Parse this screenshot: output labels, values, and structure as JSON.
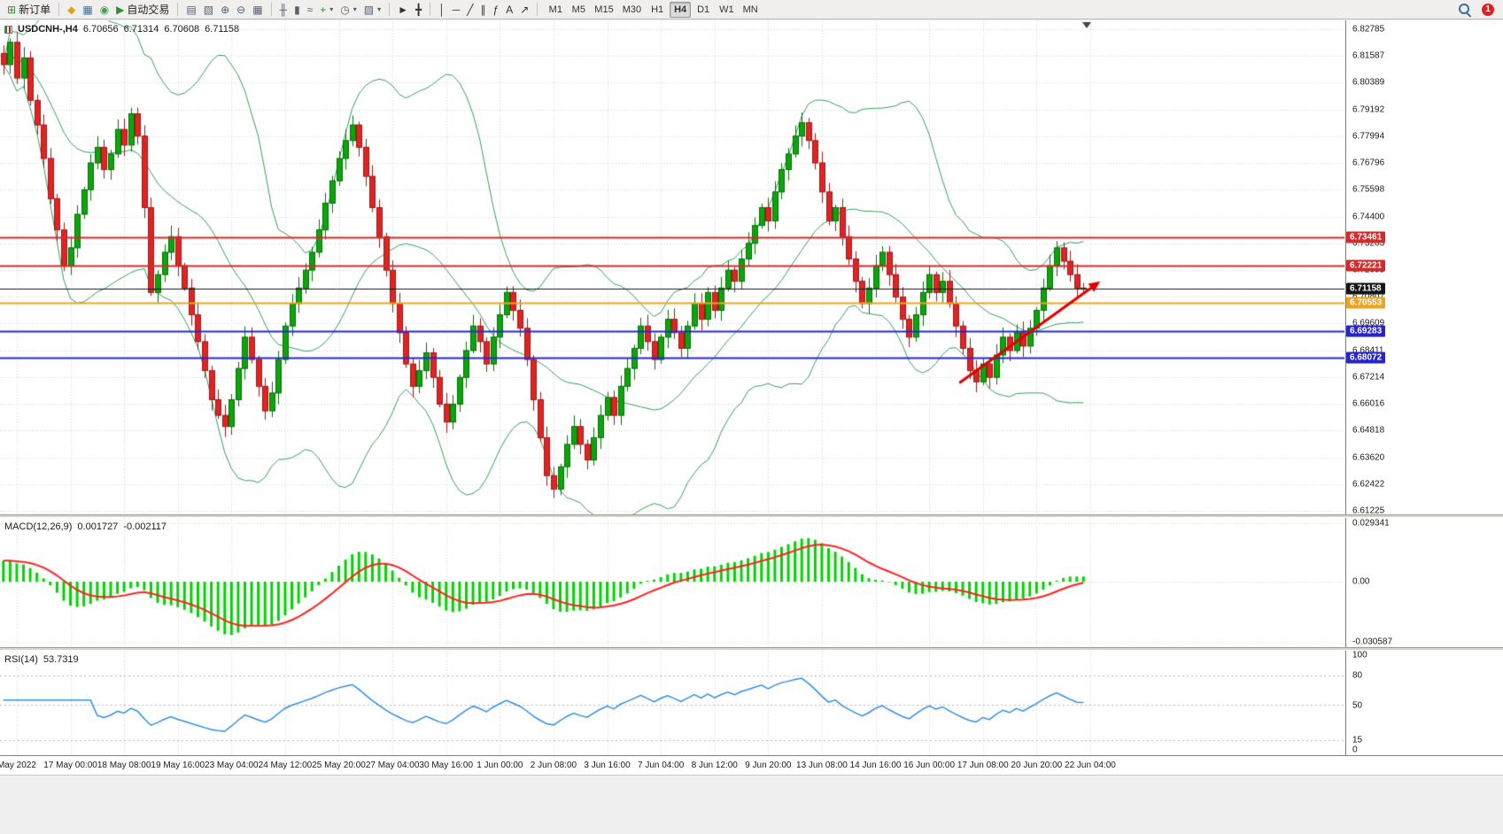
{
  "toolbar": {
    "groups": [
      {
        "name": "trade",
        "items": [
          {
            "name": "new-order-button",
            "icon": "new-order",
            "glyph": "⊞",
            "color": "#2f8f2f",
            "label": "新订单"
          }
        ]
      },
      {
        "name": "services",
        "items": [
          {
            "name": "mql5-community-button",
            "icon": "mql5",
            "glyph": "◆",
            "color": "#dfa31f"
          },
          {
            "name": "market-watch-button",
            "icon": "market-watch",
            "glyph": "▦",
            "color": "#3a6ea5"
          },
          {
            "name": "virtual-hosting-button",
            "icon": "hosting",
            "glyph": "◉",
            "color": "#3fa04a"
          },
          {
            "name": "auto-trading-button",
            "icon": "auto-trading-play",
            "glyph": "▶",
            "color": "#2f8f2f",
            "label": "自动交易"
          }
        ]
      },
      {
        "name": "windows",
        "items": [
          {
            "name": "indicator-list-button",
            "icon": "indicator-list",
            "glyph": "▤",
            "color": "#55616e"
          },
          {
            "name": "object-list-button",
            "icon": "object-list",
            "glyph": "▧",
            "color": "#55616e"
          },
          {
            "name": "zoom-in-button",
            "icon": "zoom-in",
            "glyph": "⊕",
            "color": "#55616e"
          },
          {
            "name": "zoom-out-button",
            "icon": "zoom-out",
            "glyph": "⊖",
            "color": "#55616e"
          },
          {
            "name": "tile-windows-button",
            "icon": "tile-windows",
            "glyph": "▦",
            "color": "#55616e"
          }
        ]
      },
      {
        "name": "chart-type",
        "items": [
          {
            "name": "bar-chart-button",
            "icon": "bar-chart",
            "glyph": "╫",
            "color": "#55616e"
          },
          {
            "name": "candlestick-chart-button",
            "icon": "candlestick-chart",
            "glyph": "▮",
            "color": "#55616e"
          },
          {
            "name": "line-chart-button",
            "icon": "line-chart",
            "glyph": "≈",
            "color": "#55616e"
          },
          {
            "name": "add-indicator-button",
            "icon": "add-indicator",
            "glyph": "+",
            "color": "#2f8f2f",
            "dropdown": true
          },
          {
            "name": "timeframe-menu-button",
            "icon": "clock",
            "glyph": "◷",
            "color": "#55616e",
            "dropdown": true
          },
          {
            "name": "template-menu-button",
            "icon": "template",
            "glyph": "▨",
            "color": "#55616e",
            "dropdown": true
          }
        ]
      },
      {
        "name": "cursor",
        "items": [
          {
            "name": "cursor-button",
            "icon": "cursor-arrow",
            "glyph": "►",
            "color": "#333333"
          },
          {
            "name": "crosshair-button",
            "icon": "crosshair",
            "glyph": "╋",
            "color": "#333333"
          }
        ]
      },
      {
        "name": "objects",
        "items": [
          {
            "name": "vertical-line-button",
            "icon": "vertical-line",
            "glyph": "│",
            "color": "#333333"
          },
          {
            "name": "horizontal-line-button",
            "icon": "horizontal-line",
            "glyph": "─",
            "color": "#333333"
          },
          {
            "name": "trendline-button",
            "icon": "trendline",
            "glyph": "╱",
            "color": "#333333"
          },
          {
            "name": "channel-button",
            "icon": "equidistant-channel",
            "glyph": "∥",
            "color": "#333333"
          },
          {
            "name": "fibonacci-button",
            "icon": "fibonacci-retracement",
            "glyph": "ƒ",
            "color": "#333333"
          },
          {
            "name": "text-button",
            "icon": "text",
            "glyph": "A",
            "color": "#333333"
          },
          {
            "name": "arrows-button",
            "icon": "arrow-objects",
            "glyph": "↗",
            "color": "#333333"
          }
        ]
      }
    ],
    "timeframes": [
      "M1",
      "M5",
      "M15",
      "M30",
      "H1",
      "H4",
      "D1",
      "W1",
      "MN"
    ],
    "active_timeframe": "H4",
    "notification_count": "1"
  },
  "chart": {
    "symbol": "USDCNH-,H4",
    "open": "6.70656",
    "high": "6.71314",
    "low": "6.70608",
    "close": "6.71158"
  },
  "indicators": {
    "macd_name": "MACD(12,26,9)",
    "macd_main": "0.001727",
    "macd_signal": "-0.002117",
    "rsi_name": "RSI(14)",
    "rsi_value": "53.7319"
  },
  "axes": {
    "price_labels": [
      "6.82785",
      "6.81587",
      "6.80389",
      "6.79192",
      "6.77994",
      "6.76796",
      "6.75598",
      "6.74400",
      "6.73203",
      "6.72005",
      "6.70807",
      "6.69609",
      "6.68411",
      "6.67214",
      "6.66016",
      "6.64818",
      "6.63620",
      "6.62422",
      "6.61225"
    ],
    "macd_labels": [
      "0.029341",
      "0.00",
      "-0.030587"
    ],
    "rsi_labels": [
      "100",
      "80",
      "50",
      "15",
      "0"
    ],
    "time_labels": [
      "May 2022",
      "17 May 00:00",
      "18 May 08:00",
      "19 May 16:00",
      "23 May 04:00",
      "24 May 12:00",
      "25 May 20:00",
      "27 May 04:00",
      "30 May 16:00",
      "1 Jun 00:00",
      "2 Jun 08:00",
      "3 Jun 16:00",
      "7 Jun 04:00",
      "8 Jun 12:00",
      "9 Jun 20:00",
      "13 Jun 08:00",
      "14 Jun 16:00",
      "16 Jun 00:00",
      "17 Jun 08:00",
      "20 Jun 20:00",
      "22 Jun 04:00"
    ]
  },
  "levels": [
    {
      "label": "6.73461",
      "value": 6.73461,
      "style": "red"
    },
    {
      "label": "6.72221",
      "value": 6.72221,
      "style": "red"
    },
    {
      "label": "6.71158",
      "value": 6.71158,
      "style": "current"
    },
    {
      "label": "6.70553",
      "value": 6.70553,
      "style": "orange"
    },
    {
      "label": "6.69283",
      "value": 6.69283,
      "style": "blue"
    },
    {
      "label": "6.68072",
      "value": 6.68072,
      "style": "blue"
    }
  ],
  "chart_data": {
    "type": "candlestick",
    "symbol": "USDCNH",
    "timeframe": "H4",
    "bars": 162,
    "bar_spacing_px": 7.575,
    "price_axis": {
      "top": 6.82785,
      "bottom": 6.61225
    },
    "closes": [
      6.812,
      6.822,
      6.806,
      6.815,
      6.796,
      6.785,
      6.77,
      6.752,
      6.738,
      6.722,
      6.73,
      6.745,
      6.756,
      6.768,
      6.775,
      6.765,
      6.772,
      6.783,
      6.776,
      6.79,
      6.78,
      6.748,
      6.71,
      6.718,
      6.728,
      6.735,
      6.722,
      6.712,
      6.7,
      6.688,
      6.675,
      6.662,
      6.655,
      6.65,
      6.662,
      6.676,
      6.69,
      6.68,
      6.668,
      6.657,
      6.665,
      6.68,
      6.695,
      6.705,
      6.712,
      6.72,
      6.728,
      6.738,
      6.75,
      6.76,
      6.77,
      6.778,
      6.785,
      6.775,
      6.762,
      6.748,
      6.735,
      6.72,
      6.705,
      6.692,
      6.678,
      6.668,
      6.675,
      6.683,
      6.672,
      6.66,
      6.652,
      6.66,
      6.672,
      6.684,
      6.695,
      6.688,
      6.678,
      6.69,
      6.7,
      6.71,
      6.702,
      6.694,
      6.68,
      6.662,
      6.645,
      6.628,
      6.622,
      6.632,
      6.642,
      6.65,
      6.642,
      6.635,
      6.645,
      6.655,
      6.663,
      6.655,
      6.668,
      6.676,
      6.685,
      6.695,
      6.688,
      6.68,
      6.69,
      6.698,
      6.692,
      6.685,
      6.695,
      6.705,
      6.698,
      6.71,
      6.702,
      6.712,
      6.72,
      6.715,
      6.725,
      6.732,
      6.74,
      6.748,
      6.742,
      6.755,
      6.765,
      6.772,
      6.78,
      6.786,
      6.778,
      6.768,
      6.755,
      6.742,
      6.748,
      6.735,
      6.725,
      6.715,
      6.705,
      6.712,
      6.722,
      6.728,
      6.718,
      6.708,
      6.698,
      6.69,
      6.7,
      6.71,
      6.718,
      6.71,
      6.715,
      6.705,
      6.695,
      6.685,
      6.675,
      6.67,
      6.678,
      6.672,
      6.682,
      6.69,
      6.684,
      6.692,
      6.686,
      6.694,
      6.702,
      6.712,
      6.722,
      6.73,
      6.724,
      6.718,
      6.712,
      6.7116
    ],
    "indicators": {
      "bollinger": {
        "period": 20,
        "deviation": 2
      },
      "macd": {
        "fast": 12,
        "slow": 26,
        "signal": 9,
        "current_main": 0.001727,
        "current_signal": -0.002117,
        "axis_max": 0.029341,
        "axis_min": -0.030587
      },
      "rsi": {
        "period": 14,
        "current": 53.7319,
        "levels": [
          80,
          50,
          15
        ]
      }
    },
    "trend_arrow": {
      "from_bar": 142.5,
      "from_price": 6.6695,
      "to_bar": 163.5,
      "to_price": 6.715
    },
    "colors": {
      "bull": "#0ba60b",
      "bull_border": "#056d05",
      "bear": "#e02424",
      "bear_border": "#a01616",
      "bollinger": "#31a05f",
      "grid": "#d6d6d6",
      "macd_hist": "#00d400",
      "macd_signal": "#ff2020",
      "rsi_line": "#2f8fe6",
      "arrow": "#e10000",
      "red": "#d42a2a",
      "orange": "#efa31f",
      "blue": "#2626cc",
      "current": "#161616"
    }
  }
}
